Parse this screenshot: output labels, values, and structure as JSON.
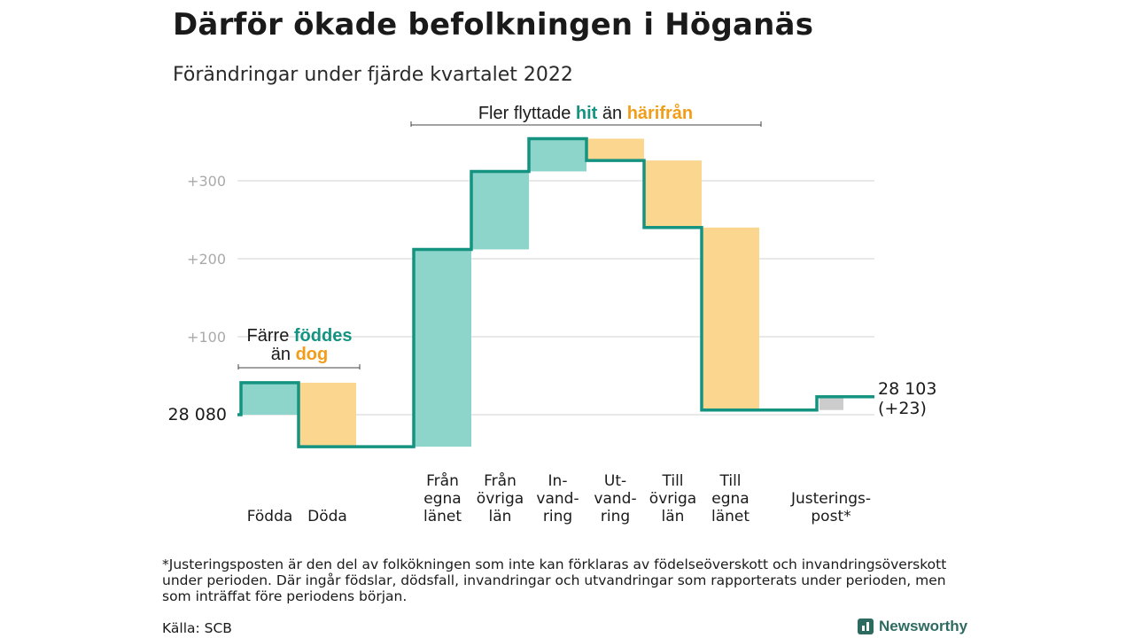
{
  "header": {
    "title": "Därför ökade befolkningen i Höganäs",
    "subtitle": "Förändringar under fjärde kvartalet 2022"
  },
  "chart_data": {
    "type": "waterfall",
    "start_value": 28080,
    "start_label": "28 080",
    "end_label_value": "28 103",
    "end_label_change": "(+23)",
    "y_ticks": [
      {
        "value": 100,
        "label": "+100"
      },
      {
        "value": 200,
        "label": "+200"
      },
      {
        "value": 300,
        "label": "+300"
      }
    ],
    "grid": true,
    "steps": [
      {
        "lines": [
          "Födda"
        ],
        "change": 41,
        "kind": "plus"
      },
      {
        "lines": [
          "Döda"
        ],
        "change": -82,
        "kind": "minus"
      },
      {
        "lines": [
          "Från",
          "egna",
          "länet"
        ],
        "change": 253,
        "kind": "plus"
      },
      {
        "lines": [
          "Från",
          "övriga",
          "län"
        ],
        "change": 100,
        "kind": "plus"
      },
      {
        "lines": [
          "In-",
          "vand-",
          "ring"
        ],
        "change": 42,
        "kind": "plus"
      },
      {
        "lines": [
          "Ut-",
          "vand-",
          "ring"
        ],
        "change": -28,
        "kind": "minus"
      },
      {
        "lines": [
          "Till",
          "övriga",
          "län"
        ],
        "change": -86,
        "kind": "minus"
      },
      {
        "lines": [
          "Till",
          "egna",
          "länet"
        ],
        "change": -234,
        "kind": "minus"
      },
      {
        "lines": [
          "Justerings-",
          "post*"
        ],
        "change": 17,
        "kind": "adjust"
      }
    ],
    "annotations": {
      "births": {
        "line1_prefix": "Färre ",
        "line1_highlight": "föddes",
        "line2_prefix": "än ",
        "line2_highlight": "dog"
      },
      "migration": {
        "prefix": "Fler flyttade ",
        "highlight1": "hit",
        "middle": " än ",
        "highlight2": "härifrån"
      }
    },
    "colors": {
      "plus": "#8dd4ca",
      "minus": "#fad68e",
      "adjust": "#cccccc",
      "line": "#159381",
      "teal_text": "#159381",
      "orange_text": "#f29d1a",
      "grid": "#e2e2e2"
    }
  },
  "footer": {
    "footnote": "*Justeringsposten är den del av folkökningen som inte kan förklaras av födelseöverskott och invandringsöverskott under perioden. Där ingår födslar, dödsfall, invandringar och utvandringar som rapporterats under perioden, men som inträffat före periodens början.",
    "source": "Källa: SCB",
    "brand": "Newsworthy"
  }
}
